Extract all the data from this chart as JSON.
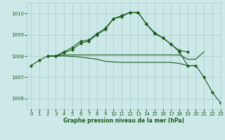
{
  "background_color": "#cce8e8",
  "grid_color": "#aacccc",
  "line_color": "#1a5c1a",
  "xlim": [
    -0.5,
    23
  ],
  "ylim": [
    1005.5,
    1010.5
  ],
  "yticks": [
    1006,
    1007,
    1008,
    1009,
    1010
  ],
  "xticks": [
    0,
    1,
    2,
    3,
    4,
    5,
    6,
    7,
    8,
    9,
    10,
    11,
    12,
    13,
    14,
    15,
    16,
    17,
    18,
    19,
    20,
    21,
    22,
    23
  ],
  "xlabel": "Graphe pression niveau de la mer (hPa)",
  "series": [
    {
      "x": [
        0,
        1,
        2,
        3,
        4,
        5,
        6,
        7,
        8,
        9,
        10,
        11,
        12,
        13,
        14,
        15,
        16,
        17,
        18,
        19
      ],
      "y": [
        1007.55,
        1007.8,
        1008.0,
        1008.0,
        1008.2,
        1008.4,
        1008.7,
        1008.75,
        1009.05,
        1009.3,
        1009.75,
        1009.85,
        1010.05,
        1010.05,
        1009.5,
        1009.1,
        1008.85,
        1008.55,
        1008.25,
        1008.2
      ],
      "has_markers": true
    },
    {
      "x": [
        2,
        3,
        4,
        5,
        6,
        7,
        8,
        9,
        10,
        11,
        12,
        13,
        14,
        15,
        16,
        17,
        18,
        19,
        20,
        21,
        22,
        23
      ],
      "y": [
        1008.0,
        1008.0,
        1008.15,
        1008.3,
        1008.6,
        1008.7,
        1009.0,
        1009.25,
        1009.75,
        1009.9,
        1010.05,
        1010.05,
        1009.5,
        1009.05,
        1008.85,
        1008.55,
        1008.2,
        1007.55,
        1007.55,
        1007.0,
        1006.3,
        1005.8
      ],
      "has_markers": true
    },
    {
      "x": [
        2,
        3,
        4,
        5,
        6,
        7,
        8,
        9,
        10,
        11,
        12,
        13,
        14,
        15,
        16,
        17,
        18,
        19,
        20,
        21
      ],
      "y": [
        1008.0,
        1008.0,
        1008.05,
        1008.05,
        1008.05,
        1008.05,
        1008.05,
        1008.05,
        1008.05,
        1008.05,
        1008.05,
        1008.05,
        1008.05,
        1008.05,
        1008.05,
        1008.05,
        1008.05,
        1007.85,
        1007.85,
        1008.2
      ],
      "has_markers": false
    },
    {
      "x": [
        2,
        3,
        4,
        5,
        6,
        7,
        8,
        9,
        10,
        11,
        12,
        13,
        14,
        15,
        16,
        17,
        18,
        19,
        20
      ],
      "y": [
        1008.0,
        1008.0,
        1008.0,
        1007.98,
        1007.95,
        1007.9,
        1007.85,
        1007.75,
        1007.72,
        1007.7,
        1007.7,
        1007.7,
        1007.7,
        1007.7,
        1007.7,
        1007.7,
        1007.65,
        1007.55,
        1007.55
      ],
      "has_markers": false
    }
  ]
}
